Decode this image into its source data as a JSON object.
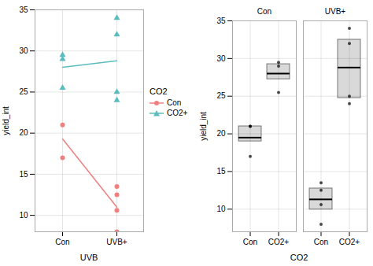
{
  "chart_data": [
    {
      "type": "line",
      "xlabel": "UVB",
      "ylabel": "yield_int",
      "categories": [
        "Con",
        "UVB+"
      ],
      "ylim": [
        8,
        35
      ],
      "yticks": [
        10,
        15,
        20,
        25,
        30,
        35
      ],
      "grid": true,
      "legend": "right",
      "legend_title": "CO2",
      "series": [
        {
          "name": "Con",
          "color": "#f08080",
          "marker": "circle",
          "values": [
            19.3,
            11.0
          ],
          "points": [
            [
              17,
              21
            ],
            [
              8,
              10.6,
              12.5,
              13.5
            ]
          ]
        },
        {
          "name": "CO2+",
          "color": "#5bbcbf",
          "marker": "triangle",
          "values": [
            28.0,
            28.8
          ],
          "points": [
            [
              25.5,
              29,
              29.5
            ],
            [
              24,
              25,
              32,
              34
            ]
          ]
        }
      ]
    },
    {
      "type": "box",
      "xlabel": "CO2",
      "ylabel": "yield_int",
      "facets": [
        "Con",
        "UVB+"
      ],
      "categories": [
        "Con",
        "CO2+"
      ],
      "ylim": [
        7,
        35
      ],
      "yticks": [
        10,
        15,
        20,
        25,
        30,
        35
      ],
      "grid": true,
      "boxes": [
        {
          "facet": "Con",
          "category": "Con",
          "q1": 19,
          "median": 19.5,
          "q3": 21,
          "points": [
            17,
            21,
            21
          ]
        },
        {
          "facet": "Con",
          "category": "CO2+",
          "q1": 27.25,
          "median": 28.0,
          "q3": 29.25,
          "points": [
            25.5,
            29,
            29.5
          ]
        },
        {
          "facet": "UVB+",
          "category": "Con",
          "q1": 9.95,
          "median": 11.3,
          "q3": 12.75,
          "points": [
            8,
            10.6,
            12.5,
            13.5
          ]
        },
        {
          "facet": "UVB+",
          "category": "CO2+",
          "q1": 24.75,
          "median": 28.8,
          "q3": 32.5,
          "points": [
            24,
            25,
            32,
            34
          ]
        }
      ]
    }
  ]
}
